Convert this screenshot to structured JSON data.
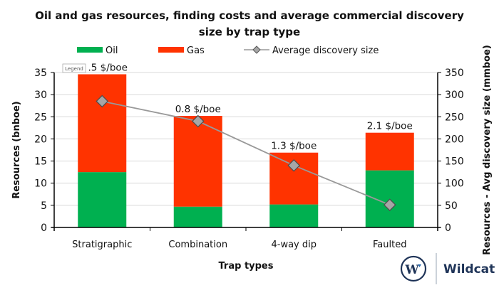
{
  "chart_data": {
    "type": "bar",
    "stacked": true,
    "title_lines": [
      "Oil and gas resources, finding costs and average commercial discovery",
      "size by trap type"
    ],
    "xlabel": "Trap types",
    "ylabel": "Resources (bnboe)",
    "y2label": "Resources - Avg discovery size  (mmboe)",
    "categories": [
      "Stratigraphic",
      "Combination",
      "4-way dip",
      "Faulted"
    ],
    "ylim": [
      0,
      35
    ],
    "y2lim": [
      0,
      350
    ],
    "yticks": [
      "0",
      "5",
      "10",
      "15",
      "20",
      "25",
      "30",
      "35"
    ],
    "y2ticks": [
      "0",
      "50",
      "100",
      "150",
      "200",
      "250",
      "300",
      "350"
    ],
    "grid": true,
    "legend_position": "top",
    "series": [
      {
        "name": "Oil",
        "type": "bar",
        "axis": "left",
        "color": "#00b050",
        "values": [
          12.5,
          4.7,
          5.2,
          12.9
        ]
      },
      {
        "name": "Gas",
        "type": "bar",
        "axis": "left",
        "color": "#ff3300",
        "values": [
          22.1,
          20.5,
          11.7,
          8.5
        ]
      },
      {
        "name": "Average discovery size",
        "type": "line",
        "axis": "right",
        "color": "#999999",
        "marker": "diamond",
        "values": [
          285,
          240,
          140,
          51
        ]
      }
    ],
    "bar_labels": [
      ".5 $/boe",
      "0.8 $/boe",
      "1.3 $/boe",
      "2.1 $/boe"
    ],
    "tooltip": "Legend"
  },
  "logo": {
    "brand": "Wildcat",
    "mark": "W"
  }
}
